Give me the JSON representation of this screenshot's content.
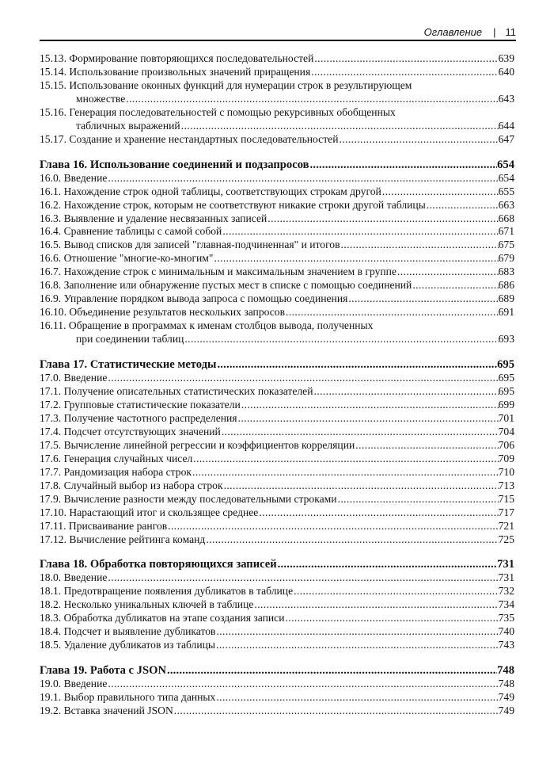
{
  "header": {
    "section": "Оглавление",
    "page_number": "11"
  },
  "blocks": [
    {
      "entries": [
        {
          "title": "15.13. Формирование повторяющихся последовательностей ",
          "page": "639"
        },
        {
          "title": "15.14. Использование произвольных значений приращения",
          "page": "640"
        },
        {
          "title": "15.15. Использование оконных функций для нумерации строк в результирующем",
          "cont": "множестве",
          "page": "643"
        },
        {
          "title": "15.16. Генерация последовательностей с помощью рекурсивных обобщенных",
          "cont": "табличных выражений",
          "page": "644"
        },
        {
          "title": "15.17. Создание и хранение нестандартных последовательностей",
          "page": "647"
        }
      ]
    },
    {
      "chapter": {
        "title": "Глава 16. Использование соединений и подзапросов ",
        "page": "654"
      },
      "entries": [
        {
          "title": "16.0. Введение",
          "page": "654"
        },
        {
          "title": "16.1. Нахождение строк одной таблицы, соответствующих строкам другой",
          "page": "655"
        },
        {
          "title": "16.2. Нахождение строк, которым не соответствуют никакие строки другой таблицы",
          "page": "663"
        },
        {
          "title": "16.3. Выявление и удаление несвязанных записей",
          "page": "668"
        },
        {
          "title": "16.4. Сравнение таблицы с самой собой",
          "page": "671"
        },
        {
          "title": "16.5. Вывод списков для записей \"главная-подчиненная\" и итогов ",
          "page": "675"
        },
        {
          "title": "16.6. Отношение \"многие-ко-многим\"",
          "page": "679"
        },
        {
          "title": "16.7. Нахождение строк с минимальным и максимальным значением в группе",
          "page": "683"
        },
        {
          "title": "16.8. Заполнение или обнаружение пустых мест в списке с помощью соединений ",
          "page": "686"
        },
        {
          "title": "16.9. Управление порядком вывода запроса с помощью соединения ",
          "page": "689"
        },
        {
          "title": "16.10. Объединение результатов нескольких запросов",
          "page": "691"
        },
        {
          "title": "16.11. Обращение в программах к именам столбцов вывода, полученных",
          "cont": "при соединении таблиц ",
          "page": "693"
        }
      ]
    },
    {
      "chapter": {
        "title": "Глава 17. Статистические методы ",
        "page": "695"
      },
      "entries": [
        {
          "title": "17.0. Введение",
          "page": "695"
        },
        {
          "title": "17.1. Получение описательных статистических показателей",
          "page": "695"
        },
        {
          "title": "17.2. Групповые статистические показатели ",
          "page": "699"
        },
        {
          "title": "17.3. Получение частотного распределения",
          "page": "701"
        },
        {
          "title": "17.4. Подсчет отсутствующих значений",
          "page": "704"
        },
        {
          "title": "17.5. Вычисление линейной регрессии и коэффициентов корреляции ",
          "page": "706"
        },
        {
          "title": "17.6. Генерация случайных чисел",
          "page": "709"
        },
        {
          "title": "17.7. Рандомизация набора строк ",
          "page": "710"
        },
        {
          "title": "17.8. Случайный выбор из набора строк ",
          "page": "713"
        },
        {
          "title": "17.9. Вычисление разности между последовательными строками",
          "page": "715"
        },
        {
          "title": "17.10. Нарастающий итог и скользящее среднее",
          "page": "717"
        },
        {
          "title": "17.11. Присваивание рангов",
          "page": "721"
        },
        {
          "title": "17.12. Вычисление рейтинга команд ",
          "page": "725"
        }
      ]
    },
    {
      "chapter": {
        "title": "Глава 18. Обработка повторяющихся записей ",
        "page": "731"
      },
      "entries": [
        {
          "title": "18.0. Введение",
          "page": "731"
        },
        {
          "title": "18.1. Предотвращение появления дубликатов в таблице ",
          "page": "732"
        },
        {
          "title": "18.2. Несколько уникальных ключей в таблице ",
          "page": "734"
        },
        {
          "title": "18.3. Обработка дубликатов на этапе создания записи",
          "page": "735"
        },
        {
          "title": "18.4. Подсчет и выявление дубликатов ",
          "page": "740"
        },
        {
          "title": "18.5. Удаление дубликатов из таблицы ",
          "page": "743"
        }
      ]
    },
    {
      "chapter": {
        "title": "Глава 19. Работа с JSON",
        "page": "748"
      },
      "entries": [
        {
          "title": "19.0. Введение",
          "page": "748"
        },
        {
          "title": "19.1. Выбор правильного типа данных",
          "page": "749"
        },
        {
          "title": "19.2. Вставка значений JSON ",
          "page": "749"
        }
      ]
    }
  ]
}
